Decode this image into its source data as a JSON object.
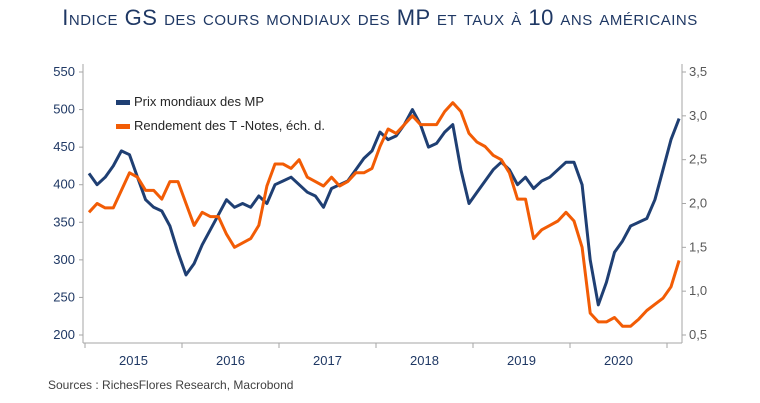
{
  "chart_data": {
    "type": "line",
    "title": "Indice GS des cours mondiaux des MP et taux à 10 ans américains",
    "source": "Sources : RichesFlores Research, Macrobond",
    "x_tick_labels": [
      "2015",
      "2016",
      "2017",
      "2018",
      "2019",
      "2020"
    ],
    "x": [
      "2015-01",
      "2015-02",
      "2015-03",
      "2015-04",
      "2015-05",
      "2015-06",
      "2015-07",
      "2015-08",
      "2015-09",
      "2015-10",
      "2015-11",
      "2015-12",
      "2016-01",
      "2016-02",
      "2016-03",
      "2016-04",
      "2016-05",
      "2016-06",
      "2016-07",
      "2016-08",
      "2016-09",
      "2016-10",
      "2016-11",
      "2016-12",
      "2017-01",
      "2017-02",
      "2017-03",
      "2017-04",
      "2017-05",
      "2017-06",
      "2017-07",
      "2017-08",
      "2017-09",
      "2017-10",
      "2017-11",
      "2017-12",
      "2018-01",
      "2018-02",
      "2018-03",
      "2018-04",
      "2018-05",
      "2018-06",
      "2018-07",
      "2018-08",
      "2018-09",
      "2018-10",
      "2018-11",
      "2018-12",
      "2019-01",
      "2019-02",
      "2019-03",
      "2019-04",
      "2019-05",
      "2019-06",
      "2019-07",
      "2019-08",
      "2019-09",
      "2019-10",
      "2019-11",
      "2019-12",
      "2020-01",
      "2020-02",
      "2020-03",
      "2020-04",
      "2020-05",
      "2020-06",
      "2020-07",
      "2020-08",
      "2020-09",
      "2020-10",
      "2020-11",
      "2020-12",
      "2021-01",
      "2021-02"
    ],
    "y_left": {
      "range": [
        200,
        550
      ],
      "ticks": [
        "200",
        "250",
        "300",
        "350",
        "400",
        "450",
        "500",
        "550"
      ]
    },
    "y_right": {
      "range": [
        0.5,
        3.5
      ],
      "ticks": [
        "0,5",
        "1,0",
        "1,5",
        "2,0",
        "2,5",
        "3,0",
        "3,5"
      ]
    },
    "grid": false,
    "legend_position": "top-left",
    "series": [
      {
        "name": "Prix mondiaux des MP",
        "axis": "left",
        "color": "#1f3f73",
        "values": [
          415,
          400,
          410,
          425,
          445,
          440,
          410,
          380,
          370,
          365,
          345,
          310,
          280,
          295,
          320,
          340,
          360,
          380,
          370,
          375,
          370,
          385,
          375,
          400,
          405,
          410,
          400,
          390,
          385,
          370,
          395,
          400,
          405,
          420,
          435,
          445,
          470,
          460,
          465,
          480,
          500,
          480,
          450,
          455,
          470,
          480,
          420,
          375,
          390,
          405,
          420,
          430,
          420,
          400,
          410,
          395,
          405,
          410,
          420,
          430,
          430,
          400,
          300,
          240,
          270,
          310,
          325,
          345,
          350,
          355,
          380,
          420,
          460,
          488
        ]
      },
      {
        "name": "Rendement des T -Notes, éch. d.",
        "axis": "right",
        "color": "#f25c05",
        "values": [
          1.9,
          2.0,
          1.95,
          1.95,
          2.15,
          2.35,
          2.3,
          2.15,
          2.15,
          2.05,
          2.25,
          2.25,
          2.0,
          1.75,
          1.9,
          1.85,
          1.85,
          1.65,
          1.5,
          1.55,
          1.6,
          1.75,
          2.2,
          2.45,
          2.45,
          2.4,
          2.5,
          2.3,
          2.25,
          2.2,
          2.3,
          2.2,
          2.25,
          2.35,
          2.35,
          2.4,
          2.65,
          2.85,
          2.8,
          2.9,
          3.0,
          2.9,
          2.9,
          2.9,
          3.05,
          3.15,
          3.05,
          2.8,
          2.7,
          2.65,
          2.55,
          2.5,
          2.35,
          2.05,
          2.05,
          1.6,
          1.7,
          1.75,
          1.8,
          1.9,
          1.8,
          1.5,
          0.75,
          0.65,
          0.65,
          0.7,
          0.6,
          0.6,
          0.68,
          0.78,
          0.85,
          0.92,
          1.05,
          1.35
        ]
      }
    ]
  }
}
